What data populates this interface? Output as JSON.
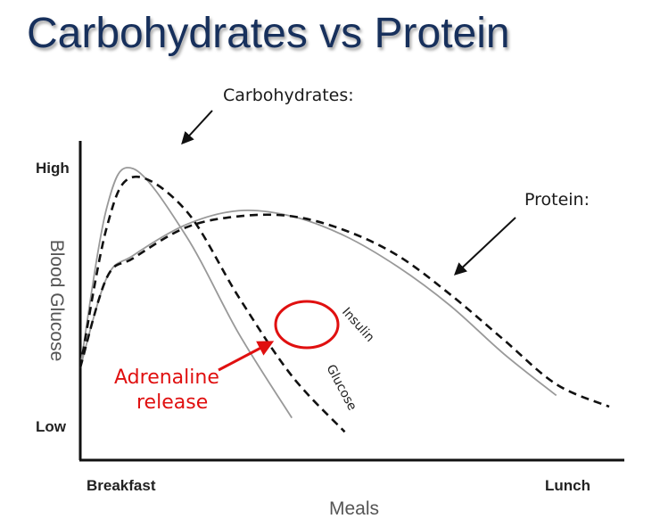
{
  "slide": {
    "title": "Carbohydrates vs Protein",
    "colors": {
      "title": "#17305c",
      "highlight": "#e01010",
      "glucose_line": "#999999",
      "insulin_line": "#111111"
    }
  },
  "chart_data": {
    "type": "line",
    "title": "",
    "xlabel": "Meals",
    "ylabel": "Blood Glucose",
    "x_tick_labels": [
      "Breakfast",
      "Lunch"
    ],
    "y_tick_labels": [
      "High",
      "Low"
    ],
    "x": [
      0,
      5,
      10,
      20,
      30,
      40,
      50,
      60,
      70,
      80,
      90,
      100
    ],
    "ylim": [
      0,
      100
    ],
    "series": [
      {
        "group": "Carbohydrates:",
        "name": "Glucose",
        "style": "solid",
        "color": "#999999",
        "values": [
          28,
          85,
          99,
          75,
          40,
          10,
          null,
          null,
          null,
          null,
          null,
          null
        ]
      },
      {
        "group": "Carbohydrates:",
        "name": "Insulin",
        "style": "dashed",
        "color": "#111111",
        "values": [
          28,
          78,
          96,
          84,
          53,
          25,
          5,
          null,
          null,
          null,
          null,
          null
        ]
      },
      {
        "group": "Protein:",
        "name": "",
        "style": "solid",
        "color": "#999999",
        "values": [
          28,
          60,
          68,
          79,
          84,
          82,
          75,
          64,
          50,
          33,
          18,
          null
        ]
      },
      {
        "group": "Protein:",
        "name": "",
        "style": "dashed",
        "color": "#111111",
        "values": [
          28,
          60,
          67,
          78,
          82,
          82,
          77,
          68,
          54,
          38,
          22,
          14
        ]
      }
    ],
    "annotations": [
      "Carbohydrates:",
      "Protein:",
      "Adrenaline",
      "release"
    ],
    "grid": false,
    "legend": "none"
  }
}
